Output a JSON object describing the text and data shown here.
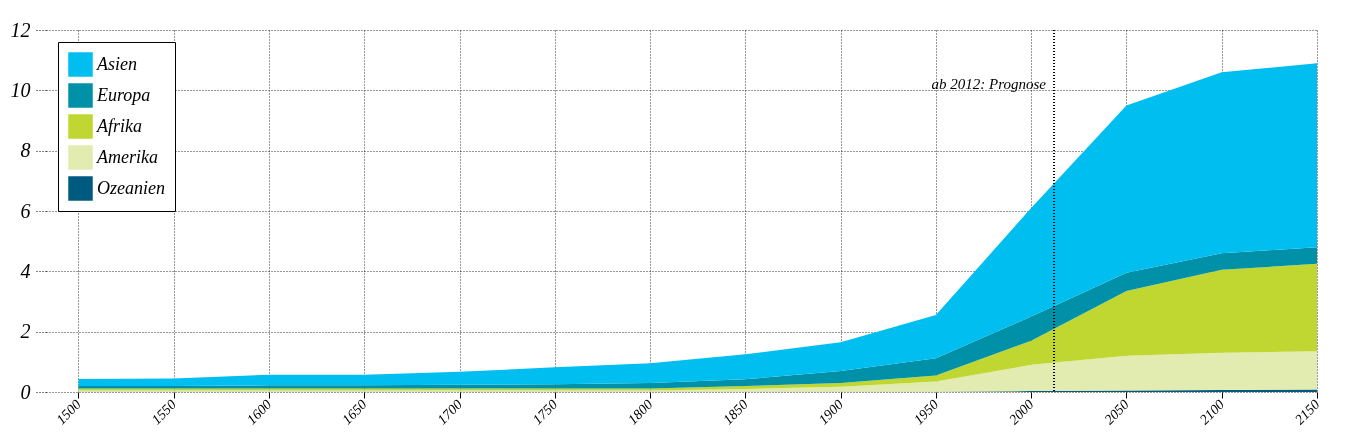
{
  "chart_data": {
    "type": "area",
    "stacked": true,
    "x": [
      1500,
      1550,
      1600,
      1650,
      1700,
      1750,
      1800,
      1850,
      1900,
      1950,
      2000,
      2050,
      2100,
      2150
    ],
    "series": [
      {
        "name": "Ozeanien",
        "color": "#005a80",
        "values": [
          0.01,
          0.01,
          0.01,
          0.01,
          0.01,
          0.01,
          0.01,
          0.01,
          0.01,
          0.01,
          0.03,
          0.05,
          0.07,
          0.08
        ]
      },
      {
        "name": "Amerika",
        "color": "#e2ecb0",
        "values": [
          0.04,
          0.04,
          0.04,
          0.04,
          0.04,
          0.04,
          0.04,
          0.09,
          0.16,
          0.34,
          0.87,
          1.15,
          1.23,
          1.27
        ]
      },
      {
        "name": "Afrika",
        "color": "#bfd730",
        "values": [
          0.07,
          0.07,
          0.07,
          0.07,
          0.07,
          0.07,
          0.07,
          0.1,
          0.13,
          0.2,
          0.8,
          2.15,
          2.75,
          2.9
        ]
      },
      {
        "name": "Europa",
        "color": "#0091a8",
        "values": [
          0.08,
          0.08,
          0.1,
          0.1,
          0.12,
          0.14,
          0.18,
          0.22,
          0.4,
          0.57,
          0.8,
          0.6,
          0.55,
          0.55
        ]
      },
      {
        "name": "Asien",
        "color": "#00bff0",
        "values": [
          0.23,
          0.25,
          0.35,
          0.35,
          0.43,
          0.56,
          0.65,
          0.83,
          0.95,
          1.43,
          3.6,
          5.55,
          6.0,
          6.1
        ]
      }
    ],
    "xlim": [
      1483,
      2150
    ],
    "xticks": [
      1500,
      1550,
      1600,
      1650,
      1700,
      1750,
      1800,
      1850,
      1900,
      1950,
      2000,
      2050,
      2100,
      2150
    ],
    "ylim": [
      0,
      12
    ],
    "yticks": [
      0,
      2,
      4,
      6,
      8,
      10,
      12
    ],
    "grid": true,
    "legend": "top left",
    "ref_lines": [
      {
        "axis": "x",
        "value": 2012,
        "label": "ab 2012: Prognose",
        "line_style": "dotted"
      }
    ]
  }
}
